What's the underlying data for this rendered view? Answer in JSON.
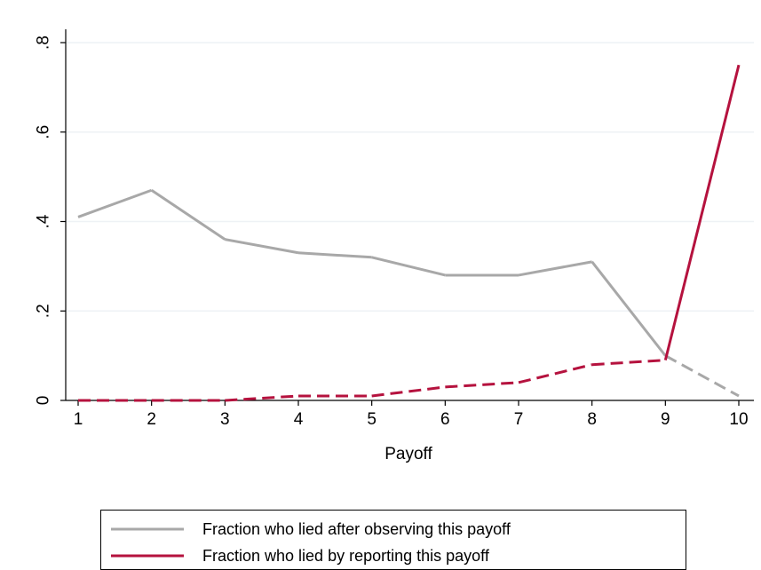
{
  "chart_data": {
    "type": "line",
    "title": "",
    "xlabel": "Payoff",
    "ylabel": "",
    "x": [
      1,
      2,
      3,
      4,
      5,
      6,
      7,
      8,
      9,
      10
    ],
    "xlim": [
      1,
      10
    ],
    "ylim": [
      0,
      0.8
    ],
    "x_ticks": [
      "1",
      "2",
      "3",
      "4",
      "5",
      "6",
      "7",
      "8",
      "9",
      "10"
    ],
    "y_ticks": [
      {
        "value": 0,
        "label": "0"
      },
      {
        "value": 0.2,
        "label": ".2"
      },
      {
        "value": 0.4,
        "label": ".4"
      },
      {
        "value": 0.6,
        "label": ".6"
      },
      {
        "value": 0.8,
        "label": ".8"
      }
    ],
    "grid": "horizontal",
    "legend_position": "bottom",
    "series": [
      {
        "name": "Fraction who lied after observing this payoff",
        "color": "#a8a8a8",
        "values": [
          0.41,
          0.47,
          0.36,
          0.33,
          0.32,
          0.28,
          0.28,
          0.31,
          0.1,
          0.01
        ],
        "dashed_segments": [
          [
            9,
            10
          ]
        ]
      },
      {
        "name": "Fraction who lied by reporting this payoff",
        "color": "#b5123e",
        "values": [
          0.0,
          0.0,
          0.0,
          0.01,
          0.01,
          0.03,
          0.04,
          0.08,
          0.09,
          0.75
        ],
        "dashed_segments": [
          [
            1,
            9
          ]
        ]
      }
    ]
  }
}
